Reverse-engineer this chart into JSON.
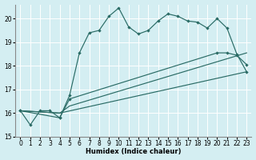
{
  "xlabel": "Humidex (Indice chaleur)",
  "bg_color": "#d4eef2",
  "grid_color": "#b8d8e0",
  "line_color": "#2a6b65",
  "xlim": [
    -0.5,
    23.5
  ],
  "ylim": [
    15.0,
    20.6
  ],
  "yticks": [
    15,
    16,
    17,
    18,
    19,
    20
  ],
  "xticks": [
    0,
    1,
    2,
    3,
    4,
    5,
    6,
    7,
    8,
    9,
    10,
    11,
    12,
    13,
    14,
    15,
    16,
    17,
    18,
    19,
    20,
    21,
    22,
    23
  ],
  "line1_x": [
    0,
    1,
    2,
    3,
    4,
    5,
    6,
    7,
    8,
    9,
    10,
    11,
    12,
    13,
    14,
    15,
    16,
    17,
    18,
    19,
    20,
    21,
    22,
    23
  ],
  "line1_y": [
    16.1,
    15.5,
    16.1,
    16.1,
    15.8,
    16.75,
    18.55,
    19.4,
    19.5,
    20.1,
    20.45,
    19.65,
    19.35,
    19.5,
    19.9,
    20.2,
    20.1,
    19.9,
    19.85,
    19.6,
    20.0,
    19.6,
    18.5,
    17.75
  ],
  "line2_x": [
    0,
    4,
    23
  ],
  "line2_y": [
    16.1,
    16.0,
    17.75
  ],
  "line3_x": [
    0,
    4,
    5,
    23
  ],
  "line3_y": [
    16.1,
    16.0,
    16.3,
    18.55
  ],
  "line4_x": [
    0,
    4,
    5,
    20,
    21,
    22,
    23
  ],
  "line4_y": [
    16.1,
    15.8,
    16.6,
    18.55,
    18.55,
    18.45,
    18.05
  ]
}
